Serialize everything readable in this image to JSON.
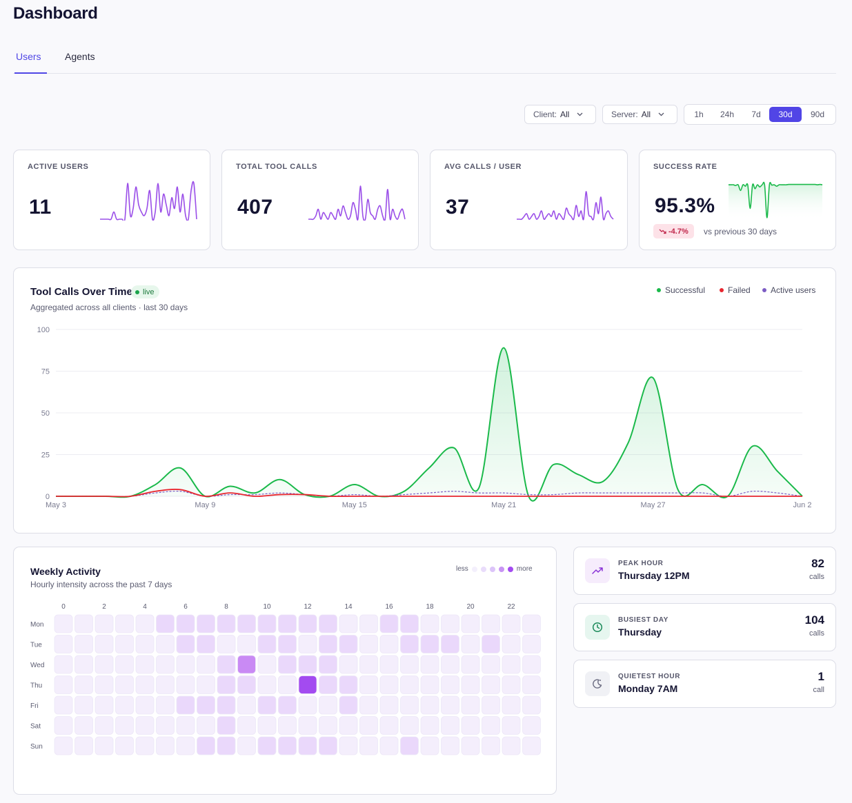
{
  "page": {
    "title": "Dashboard"
  },
  "tabs": [
    {
      "label": "Users",
      "active": true
    },
    {
      "label": "Agents",
      "active": false
    }
  ],
  "filters": {
    "client": {
      "label": "Client:",
      "value": "All"
    },
    "server": {
      "label": "Server:",
      "value": "All"
    },
    "ranges": [
      "1h",
      "24h",
      "7d",
      "30d",
      "90d"
    ],
    "active_range": "30d"
  },
  "colors": {
    "accent": "#5145e6",
    "success": "#1ab94a",
    "failed": "#e8262f",
    "users": "#7c5cc4",
    "spark": "#9a4ee8",
    "heat": "#a34bf0"
  },
  "kpis": [
    {
      "label": "ACTIVE USERS",
      "value": "11",
      "spark": [
        0,
        0,
        0,
        0,
        0,
        2,
        0,
        0,
        0,
        0,
        10,
        1,
        3,
        9,
        4,
        2,
        1,
        3,
        8,
        0,
        2,
        10,
        2,
        7,
        4,
        1,
        6,
        3,
        9,
        2,
        7,
        1,
        0,
        8,
        10,
        0
      ]
    },
    {
      "label": "TOTAL TOOL CALLS",
      "value": "407",
      "spark": [
        0,
        0,
        0,
        1,
        3,
        0,
        2,
        1,
        0,
        2,
        1,
        0,
        3,
        1,
        4,
        2,
        0,
        1,
        5,
        3,
        0,
        10,
        1,
        0,
        6,
        2,
        1,
        0,
        3,
        4,
        1,
        0,
        9,
        0,
        3,
        1,
        0,
        2,
        3,
        0
      ]
    },
    {
      "label": "AVG CALLS / USER",
      "value": "37",
      "spark": [
        0,
        0,
        0,
        1,
        2,
        0,
        1,
        2,
        0,
        1,
        3,
        0,
        1,
        2,
        1,
        3,
        0,
        2,
        1,
        0,
        4,
        2,
        1,
        0,
        5,
        1,
        3,
        0,
        10,
        2,
        1,
        0,
        6,
        2,
        8,
        0,
        2,
        3,
        1,
        0
      ]
    },
    {
      "label": "SUCCESS RATE",
      "value": "95.3%",
      "delta": "-4.7%",
      "delta_note": "vs previous 30 days",
      "spark": [
        96,
        96,
        96,
        94,
        96,
        80,
        96,
        92,
        95,
        30,
        96,
        85,
        96,
        90,
        96,
        96,
        4,
        96,
        95,
        96,
        92,
        96,
        96,
        96,
        96,
        97,
        97,
        97,
        97,
        97,
        97,
        97,
        97,
        97,
        97,
        97,
        97,
        96,
        97,
        96
      ]
    }
  ],
  "tool_calls_chart": {
    "title": "Tool Calls Over Time",
    "live_label": "live",
    "subtitle": "Aggregated across all clients · last 30 days",
    "legend": [
      {
        "label": "Successful",
        "color": "#1ab94a"
      },
      {
        "label": "Failed",
        "color": "#e8262f"
      },
      {
        "label": "Active users",
        "color": "#7c5cc4"
      }
    ]
  },
  "chart_data": {
    "type": "area",
    "title": "Tool Calls Over Time",
    "x": [
      "May 3",
      "May 4",
      "May 5",
      "May 6",
      "May 7",
      "May 8",
      "May 9",
      "May 10",
      "May 11",
      "May 12",
      "May 13",
      "May 14",
      "May 15",
      "May 16",
      "May 17",
      "May 18",
      "May 19",
      "May 20",
      "May 21",
      "May 22",
      "May 23",
      "May 24",
      "May 25",
      "May 26",
      "May 27",
      "May 28",
      "May 29",
      "May 30",
      "May 31",
      "Jun 1",
      "Jun 2"
    ],
    "x_ticks": [
      "May 3",
      "May 9",
      "May 15",
      "May 21",
      "May 27",
      "Jun 2"
    ],
    "y_ticks": [
      0,
      25,
      50,
      75,
      100
    ],
    "ylim": [
      0,
      100
    ],
    "grid": true,
    "legend_position": "top-right",
    "series": [
      {
        "name": "Successful",
        "values": [
          0,
          0,
          0,
          0,
          7,
          17,
          0,
          6,
          2,
          10,
          1,
          0,
          7,
          0,
          3,
          17,
          29,
          5,
          89,
          0,
          19,
          13,
          9,
          32,
          71,
          4,
          7,
          0,
          30,
          15,
          0
        ]
      },
      {
        "name": "Failed",
        "values": [
          0,
          0,
          0,
          0,
          3,
          4,
          0,
          2,
          0,
          1,
          1,
          0,
          0,
          0,
          0,
          0,
          0,
          0,
          0,
          0,
          0,
          0,
          0,
          0,
          0,
          0,
          0,
          0,
          0,
          0,
          0
        ]
      },
      {
        "name": "Active users",
        "values": [
          0,
          0,
          0,
          0,
          2,
          3,
          0,
          1,
          1,
          2,
          1,
          0,
          1,
          0,
          1,
          2,
          3,
          2,
          2,
          1,
          1,
          2,
          2,
          2,
          2,
          2,
          2,
          0,
          3,
          2,
          0
        ]
      }
    ]
  },
  "weekly_activity": {
    "title": "Weekly Activity",
    "subtitle": "Hourly intensity across the past 7 days",
    "legend_less": "less",
    "legend_more": "more",
    "hour_ticks": [
      "0",
      "2",
      "4",
      "6",
      "8",
      "10",
      "12",
      "14",
      "16",
      "18",
      "20",
      "22"
    ],
    "days": [
      "Mon",
      "Tue",
      "Wed",
      "Thu",
      "Fri",
      "Sat",
      "Sun"
    ],
    "levels": [
      [
        1,
        1,
        1,
        1,
        1,
        2,
        2,
        2,
        2,
        2,
        2,
        2,
        2,
        2,
        1,
        1,
        2,
        2,
        1,
        1,
        1,
        1,
        1,
        1
      ],
      [
        1,
        1,
        1,
        1,
        1,
        1,
        2,
        2,
        1,
        1,
        2,
        2,
        1,
        2,
        2,
        1,
        1,
        2,
        2,
        2,
        1,
        2,
        1,
        1
      ],
      [
        1,
        1,
        1,
        1,
        1,
        1,
        1,
        1,
        2,
        4,
        1,
        2,
        2,
        2,
        1,
        1,
        1,
        1,
        1,
        1,
        1,
        1,
        1,
        1
      ],
      [
        1,
        1,
        1,
        1,
        1,
        1,
        1,
        1,
        2,
        2,
        1,
        1,
        5,
        2,
        2,
        1,
        1,
        1,
        1,
        1,
        1,
        1,
        1,
        1
      ],
      [
        1,
        1,
        1,
        1,
        1,
        1,
        2,
        2,
        2,
        1,
        2,
        2,
        1,
        1,
        2,
        1,
        1,
        1,
        1,
        1,
        1,
        1,
        1,
        1
      ],
      [
        1,
        1,
        1,
        1,
        1,
        1,
        1,
        1,
        2,
        1,
        1,
        1,
        1,
        1,
        1,
        1,
        1,
        1,
        1,
        1,
        1,
        1,
        1,
        1
      ],
      [
        1,
        1,
        1,
        1,
        1,
        1,
        1,
        2,
        2,
        1,
        2,
        2,
        2,
        2,
        1,
        1,
        1,
        2,
        1,
        1,
        1,
        1,
        1,
        1
      ]
    ]
  },
  "stats": [
    {
      "label": "PEAK HOUR",
      "value": "Thursday 12PM",
      "number": "82",
      "unit": "calls",
      "icon": "trending-up-icon"
    },
    {
      "label": "BUSIEST DAY",
      "value": "Thursday",
      "number": "104",
      "unit": "calls",
      "icon": "clock-icon"
    },
    {
      "label": "QUIETEST HOUR",
      "value": "Monday 7AM",
      "number": "1",
      "unit": "call",
      "icon": "moon-icon"
    }
  ]
}
